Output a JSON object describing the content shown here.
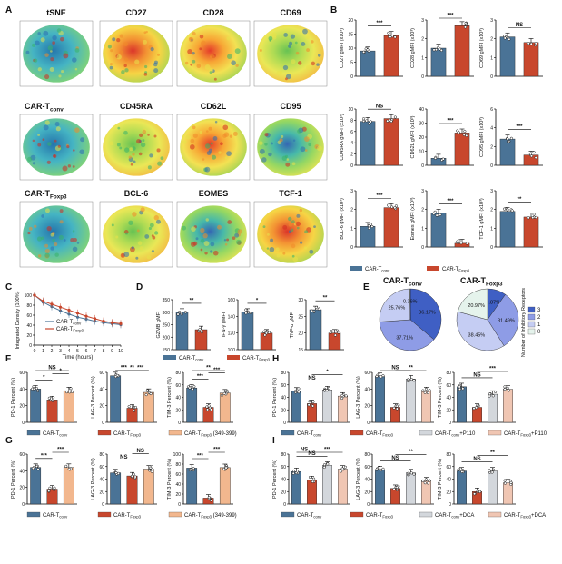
{
  "panel_letters": [
    "A",
    "B",
    "C",
    "D",
    "E",
    "F",
    "G",
    "H",
    "I"
  ],
  "colors": {
    "conv": "#4a7396",
    "foxp3": "#c8472d",
    "peach": "#f2b78e",
    "grey": "#d3d7dc",
    "pink": "#f0c6b3",
    "pie": [
      "#3f5fc4",
      "#8e9ce6",
      "#c5cdf3",
      "#e5f3ec"
    ]
  },
  "tsne_titles": [
    "tSNE",
    "CD27",
    "CD28",
    "CD69",
    "CAR-Tconv",
    "CD45RA",
    "CD62L",
    "CD95",
    "CAR-TFoxp3",
    "BCL-6",
    "EOMES",
    "TCF-1"
  ],
  "legends": {
    "B": [
      "CAR-Tconv",
      "CAR-TFoxp3"
    ],
    "C": [
      "CAR-Tconv",
      "CAR-TFoxp3"
    ],
    "D": [
      "CAR-Tconv",
      "CAR-TFoxp3"
    ],
    "F": [
      "CAR-Tconv",
      "CAR-TFoxp3",
      "CAR-TFoxp3 (349-399)"
    ],
    "G": [
      "CAR-Tconv",
      "CAR-TFoxp3",
      "CAR-TFoxp3 (349-399)"
    ],
    "H": [
      "CAR-Tconv",
      "CAR-TFoxp3",
      "CAR-Tconv+P110",
      "CAR-TFoxp3+P110"
    ],
    "I": [
      "CAR-Tconv",
      "CAR-TFoxp3",
      "CAR-Tconv+DCA",
      "CAR-TFoxp3+DCA"
    ]
  },
  "pie_legend_title": "Number of Inhibitory Receptors",
  "chart_data": [
    {
      "panel": "B",
      "type": "bar",
      "ylabel": "CD27 gMFI (x10³)",
      "categories": [
        "CAR-Tconv",
        "CAR-TFoxp3"
      ],
      "values": [
        9,
        14.5
      ],
      "ylim": [
        0,
        20
      ],
      "ticks": [
        0,
        5,
        10,
        15,
        20
      ],
      "sig": [
        "***"
      ]
    },
    {
      "panel": "B",
      "type": "bar",
      "ylabel": "CD28 gMFI (x10³)",
      "categories": [
        "CAR-Tconv",
        "CAR-TFoxp3"
      ],
      "values": [
        1.5,
        2.7
      ],
      "ylim": [
        0,
        3
      ],
      "ticks": [
        0,
        1,
        2,
        3
      ],
      "sig": [
        "***"
      ]
    },
    {
      "panel": "B",
      "type": "bar",
      "ylabel": "CD69 gMFI (x10³)",
      "categories": [
        "CAR-Tconv",
        "CAR-TFoxp3"
      ],
      "values": [
        2.1,
        1.8
      ],
      "ylim": [
        0,
        3
      ],
      "ticks": [
        0,
        1,
        2,
        3
      ],
      "sig": [
        "NS"
      ]
    },
    {
      "panel": "B",
      "type": "bar",
      "ylabel": "CD45RA gMFI (x10³)",
      "categories": [
        "CAR-Tconv",
        "CAR-TFoxp3"
      ],
      "values": [
        7.8,
        8.3
      ],
      "ylim": [
        0,
        10
      ],
      "ticks": [
        0,
        2,
        4,
        6,
        8,
        10
      ],
      "sig": [
        "NS"
      ]
    },
    {
      "panel": "B",
      "type": "bar",
      "ylabel": "CD62L gMFI (x10³)",
      "categories": [
        "CAR-Tconv",
        "CAR-TFoxp3"
      ],
      "values": [
        5,
        23
      ],
      "ylim": [
        0,
        40
      ],
      "ticks": [
        0,
        10,
        20,
        30,
        40
      ],
      "sig": [
        "***"
      ]
    },
    {
      "panel": "B",
      "type": "bar",
      "ylabel": "CD95 gMFI (x10³)",
      "categories": [
        "CAR-Tconv",
        "CAR-TFoxp3"
      ],
      "values": [
        2.8,
        1.1
      ],
      "ylim": [
        0,
        6
      ],
      "ticks": [
        0,
        2,
        4,
        6
      ],
      "sig": [
        "***"
      ]
    },
    {
      "panel": "B",
      "type": "bar",
      "ylabel": "BCL-6 gMFI (x10³)",
      "categories": [
        "CAR-Tconv",
        "CAR-TFoxp3"
      ],
      "values": [
        1.1,
        2.1
      ],
      "ylim": [
        0,
        3
      ],
      "ticks": [
        0,
        1,
        2,
        3
      ],
      "sig": [
        "***"
      ]
    },
    {
      "panel": "B",
      "type": "bar",
      "ylabel": "Eomes gMFI (x10³)",
      "categories": [
        "CAR-Tconv",
        "CAR-TFoxp3"
      ],
      "values": [
        1.8,
        0.2
      ],
      "ylim": [
        0,
        3
      ],
      "ticks": [
        0,
        1,
        2,
        3
      ],
      "sig": [
        "***"
      ]
    },
    {
      "panel": "B",
      "type": "bar",
      "ylabel": "TCF-1 gMFI (x10³)",
      "categories": [
        "CAR-Tconv",
        "CAR-TFoxp3"
      ],
      "values": [
        1.9,
        1.6
      ],
      "ylim": [
        0,
        3
      ],
      "ticks": [
        0,
        1,
        2,
        3
      ],
      "sig": [
        "**"
      ]
    },
    {
      "panel": "C",
      "type": "line",
      "xlabel": "Time (hours)",
      "ylabel": "Integrated Density (100%)",
      "x": [
        0,
        1,
        2,
        3,
        4,
        5,
        6,
        7,
        8,
        9,
        10
      ],
      "xlim": [
        0,
        10
      ],
      "xticks": [
        0,
        1,
        2,
        3,
        4,
        5,
        6,
        7,
        8,
        9,
        10
      ],
      "ylim": [
        0,
        100
      ],
      "yticks": [
        0,
        20,
        40,
        60,
        80,
        100
      ],
      "series": [
        {
          "name": "CAR-Tconv",
          "values": [
            100,
            86,
            77,
            69,
            62,
            56,
            52,
            48,
            45,
            43,
            41
          ]
        },
        {
          "name": "CAR-TFoxp3",
          "values": [
            100,
            88,
            82,
            76,
            70,
            64,
            58,
            53,
            48,
            45,
            43
          ]
        }
      ]
    },
    {
      "panel": "D",
      "type": "bar",
      "ylabel": "GZMB gMFI",
      "categories": [
        "CAR-Tconv",
        "CAR-TFoxp3"
      ],
      "values": [
        300,
        230
      ],
      "ylim": [
        150,
        350
      ],
      "ticks": [
        150,
        200,
        250,
        300,
        350
      ],
      "sig": [
        "**"
      ]
    },
    {
      "panel": "D",
      "type": "bar",
      "ylabel": "IFN-γ gMFI",
      "categories": [
        "CAR-Tconv",
        "CAR-TFoxp3"
      ],
      "values": [
        145,
        120
      ],
      "ylim": [
        100,
        160
      ],
      "ticks": [
        100,
        120,
        140,
        160
      ],
      "sig": [
        "*"
      ]
    },
    {
      "panel": "D",
      "type": "bar",
      "ylabel": "TNF-α gMFI",
      "categories": [
        "CAR-Tconv",
        "CAR-TFoxp3"
      ],
      "values": [
        27,
        20
      ],
      "ylim": [
        15,
        30
      ],
      "ticks": [
        15,
        20,
        25,
        30
      ],
      "sig": [
        "**"
      ]
    },
    {
      "panel": "E",
      "type": "pie",
      "title": "CAR-Tconv",
      "labels": [
        "3",
        "2",
        "1",
        "0"
      ],
      "values": [
        36.17,
        37.71,
        25.76,
        0.36
      ]
    },
    {
      "panel": "E",
      "type": "pie",
      "title": "CAR-TFoxp3",
      "labels": [
        "3",
        "2",
        "1",
        "0"
      ],
      "values": [
        9.87,
        31.49,
        38.45,
        20.97
      ]
    },
    {
      "panel": "F",
      "type": "bar",
      "ylabel": "PD-1 Percent (%)",
      "categories": [
        "CAR-Tconv",
        "CAR-TFoxp3",
        "CAR-TFoxp3 (349-399)"
      ],
      "values": [
        40,
        27,
        38
      ],
      "ylim": [
        0,
        60
      ],
      "ticks": [
        0,
        20,
        40,
        60
      ],
      "sig": [
        "*",
        "*",
        "NS"
      ]
    },
    {
      "panel": "F",
      "type": "bar",
      "ylabel": "LAG-3 Percent (%)",
      "categories": [
        "CAR-Tconv",
        "CAR-TFoxp3",
        "CAR-TFoxp3 (349-399)"
      ],
      "values": [
        56,
        17,
        36
      ],
      "ylim": [
        0,
        60
      ],
      "ticks": [
        0,
        20,
        40,
        60
      ],
      "sig": [
        "***",
        "***",
        "**"
      ]
    },
    {
      "panel": "F",
      "type": "bar",
      "ylabel": "TIM-3 Percent (%)",
      "categories": [
        "CAR-Tconv",
        "CAR-TFoxp3",
        "CAR-TFoxp3 (349-399)"
      ],
      "values": [
        55,
        24,
        47
      ],
      "ylim": [
        0,
        80
      ],
      "ticks": [
        0,
        20,
        40,
        60,
        80
      ],
      "sig": [
        "***",
        "***",
        "**"
      ]
    },
    {
      "panel": "G",
      "type": "bar",
      "ylabel": "PD-1 Percent (%)",
      "categories": [
        "CAR-Tconv",
        "CAR-TFoxp3",
        "CAR-TFoxp3 (349-399)"
      ],
      "values": [
        44,
        18,
        44
      ],
      "ylim": [
        0,
        60
      ],
      "ticks": [
        0,
        20,
        40,
        60
      ],
      "sig": [
        "***",
        "***"
      ]
    },
    {
      "panel": "G",
      "type": "bar",
      "ylabel": "LAG-3 Percent (%)",
      "categories": [
        "CAR-Tconv",
        "CAR-TFoxp3",
        "CAR-TFoxp3 (349-399)"
      ],
      "values": [
        50,
        45,
        56
      ],
      "ylim": [
        0,
        80
      ],
      "ticks": [
        0,
        20,
        40,
        60,
        80
      ],
      "sig": [
        "NS",
        "NS"
      ]
    },
    {
      "panel": "G",
      "type": "bar",
      "ylabel": "TIM-3 Percent (%)",
      "categories": [
        "CAR-Tconv",
        "CAR-TFoxp3",
        "CAR-TFoxp3 (349-399)"
      ],
      "values": [
        72,
        12,
        73
      ],
      "ylim": [
        0,
        100
      ],
      "ticks": [
        0,
        20,
        40,
        60,
        80,
        100
      ],
      "sig": [
        "***",
        "***"
      ]
    },
    {
      "panel": "H",
      "type": "bar",
      "ylabel": "PD-1 Percent (%)",
      "categories": [
        "CAR-Tconv",
        "CAR-TFoxp3",
        "CAR-Tconv+P110",
        "CAR-TFoxp3+P110"
      ],
      "values": [
        50,
        30,
        52,
        42
      ],
      "ylim": [
        0,
        80
      ],
      "ticks": [
        0,
        20,
        40,
        60,
        80
      ],
      "sig": [
        "NS",
        "*"
      ]
    },
    {
      "panel": "H",
      "type": "bar",
      "ylabel": "LAG-3 Percent (%)",
      "categories": [
        "CAR-Tconv",
        "CAR-TFoxp3",
        "CAR-Tconv+P110",
        "CAR-TFoxp3+P110"
      ],
      "values": [
        55,
        18,
        52,
        38
      ],
      "ylim": [
        0,
        60
      ],
      "ticks": [
        0,
        20,
        40,
        60
      ],
      "sig": [
        "NS",
        "**"
      ]
    },
    {
      "panel": "H",
      "type": "bar",
      "ylabel": "TIM-3 Percent (%)",
      "categories": [
        "CAR-Tconv",
        "CAR-TFoxp3",
        "CAR-Tconv+P110",
        "CAR-TFoxp3+P110"
      ],
      "values": [
        57,
        24,
        45,
        53
      ],
      "ylim": [
        0,
        80
      ],
      "ticks": [
        0,
        20,
        40,
        60,
        80
      ],
      "sig": [
        "NS",
        "***"
      ]
    },
    {
      "panel": "I",
      "type": "bar",
      "ylabel": "PD-1 Percent (%)",
      "categories": [
        "CAR-Tconv",
        "CAR-TFoxp3",
        "CAR-Tconv+DCA",
        "CAR-TFoxp3+DCA"
      ],
      "values": [
        52,
        39,
        62,
        56
      ],
      "ylim": [
        0,
        80
      ],
      "ticks": [
        0,
        20,
        40,
        60,
        80
      ],
      "sig": [
        "NS",
        "***",
        "NS"
      ]
    },
    {
      "panel": "I",
      "type": "bar",
      "ylabel": "LAG-3 Percent (%)",
      "categories": [
        "CAR-Tconv",
        "CAR-TFoxp3",
        "CAR-Tconv+DCA",
        "CAR-TFoxp3+DCA"
      ],
      "values": [
        55,
        25,
        50,
        37
      ],
      "ylim": [
        0,
        80
      ],
      "ticks": [
        0,
        20,
        40,
        60,
        80
      ],
      "sig": [
        "NS",
        "**"
      ]
    },
    {
      "panel": "I",
      "type": "bar",
      "ylabel": "TIM-3 Percent (%)",
      "categories": [
        "CAR-Tconv",
        "CAR-TFoxp3",
        "CAR-Tconv+DCA",
        "CAR-TFoxp3+DCA"
      ],
      "values": [
        53,
        20,
        53,
        34
      ],
      "ylim": [
        0,
        80
      ],
      "ticks": [
        0,
        20,
        40,
        60,
        80
      ],
      "sig": [
        "NS",
        "**"
      ]
    }
  ]
}
